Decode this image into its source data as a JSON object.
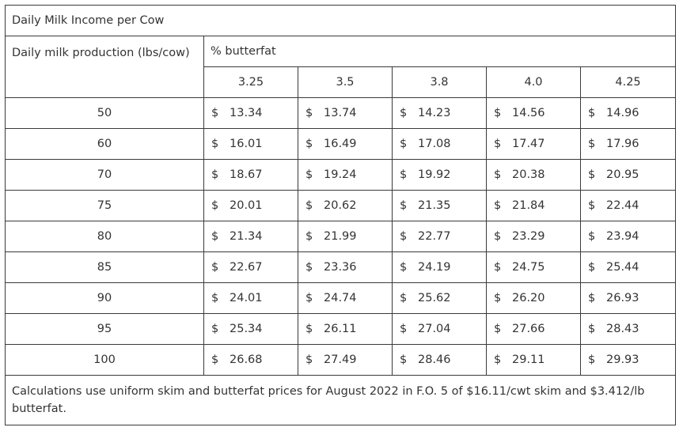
{
  "title": "Daily Milk Income per Cow",
  "row_header": "Daily milk production (lbs/cow)",
  "col_header": "% butterfat",
  "butterfat_levels": [
    "3.25",
    "3.5",
    "3.8",
    "4.0",
    "4.25"
  ],
  "currency_symbol": "$",
  "rows": [
    {
      "production": "50",
      "values": [
        "13.34",
        "13.74",
        "14.23",
        "14.56",
        "14.96"
      ]
    },
    {
      "production": "60",
      "values": [
        "16.01",
        "16.49",
        "17.08",
        "17.47",
        "17.96"
      ]
    },
    {
      "production": "70",
      "values": [
        "18.67",
        "19.24",
        "19.92",
        "20.38",
        "20.95"
      ]
    },
    {
      "production": "75",
      "values": [
        "20.01",
        "20.62",
        "21.35",
        "21.84",
        "22.44"
      ]
    },
    {
      "production": "80",
      "values": [
        "21.34",
        "21.99",
        "22.77",
        "23.29",
        "23.94"
      ]
    },
    {
      "production": "85",
      "values": [
        "22.67",
        "23.36",
        "24.19",
        "24.75",
        "25.44"
      ]
    },
    {
      "production": "90",
      "values": [
        "24.01",
        "24.74",
        "25.62",
        "26.20",
        "26.93"
      ]
    },
    {
      "production": "95",
      "values": [
        "25.34",
        "26.11",
        "27.04",
        "27.66",
        "28.43"
      ]
    },
    {
      "production": "100",
      "values": [
        "26.68",
        "27.49",
        "28.46",
        "29.11",
        "29.93"
      ]
    }
  ],
  "footnote": "Calculations use uniform skim and butterfat prices for August 2022 in F.O. 5 of $16.11/cwt skim and $3.412/lb butterfat.",
  "colors": {
    "text": "#333333",
    "border": "#3a3a3a",
    "background": "#ffffff"
  }
}
